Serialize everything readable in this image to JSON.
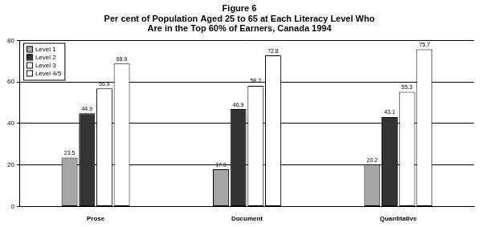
{
  "chart_data": {
    "type": "bar",
    "title": "Figure 6",
    "subtitle": "Per cent of Population Aged 25 to 65 at Each Literacy Level Who Are in the Top 60% of Earners, Canada 1994",
    "categories": [
      "Prose",
      "Document",
      "Quantitative"
    ],
    "series": [
      {
        "name": "Level 1",
        "color": "#a6a6a6",
        "values": [
          23.5,
          17.9,
          20.2
        ]
      },
      {
        "name": "Level 2",
        "color": "#333333",
        "values": [
          44.9,
          46.9,
          43.1
        ]
      },
      {
        "name": "Level 3",
        "color": "#ffffff",
        "values": [
          56.9,
          58.2,
          55.3
        ]
      },
      {
        "name": "Level 4/5",
        "color": "#ffffff",
        "values": [
          68.9,
          72.8,
          75.7
        ]
      }
    ],
    "ylim": [
      0,
      80
    ],
    "yticks": [
      0,
      20,
      40,
      60,
      80
    ],
    "grid": true,
    "legend": "top-left",
    "data_labels": true
  }
}
